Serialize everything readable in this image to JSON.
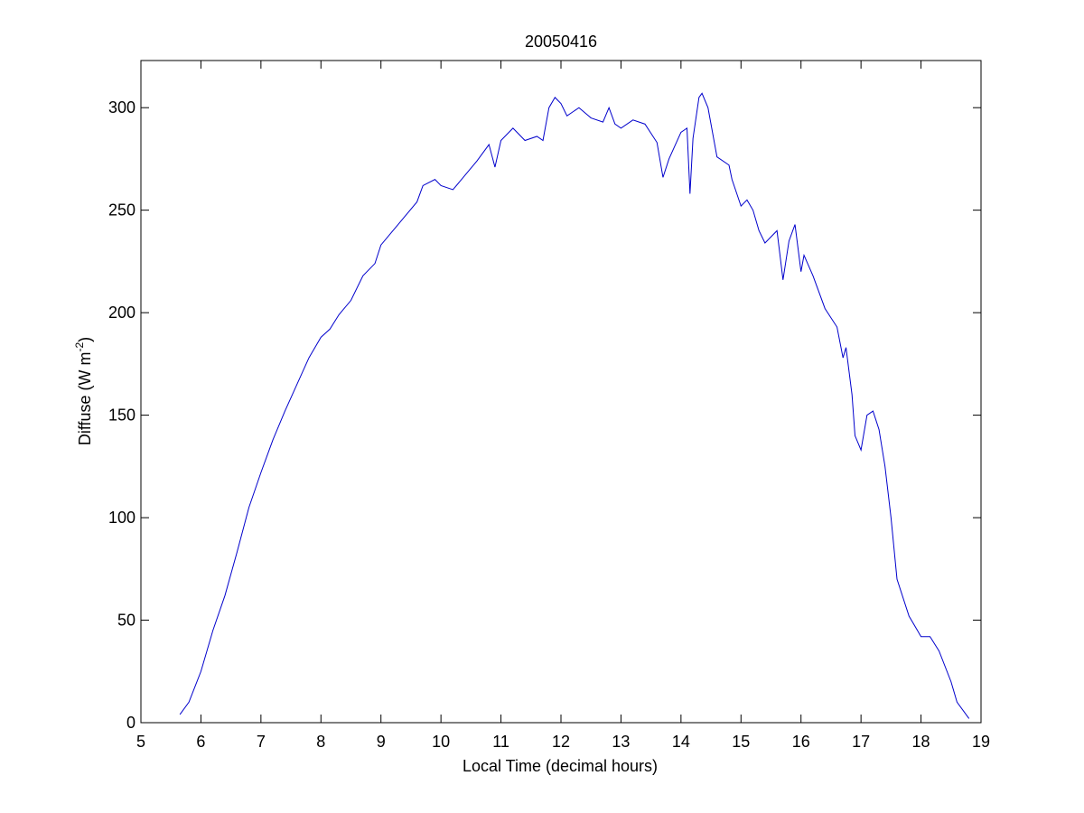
{
  "chart_data": {
    "type": "line",
    "title": "20050416",
    "xlabel": "Local Time (decimal hours)",
    "ylabel": "Diffuse (W m",
    "ylabel_sup": "-2",
    "ylabel_end": ")",
    "color": "#0000cc",
    "x": [
      5.65,
      5.8,
      6.0,
      6.2,
      6.4,
      6.6,
      6.8,
      7.0,
      7.2,
      7.4,
      7.6,
      7.8,
      8.0,
      8.15,
      8.3,
      8.5,
      8.7,
      8.9,
      9.0,
      9.2,
      9.4,
      9.6,
      9.7,
      9.9,
      10.0,
      10.2,
      10.4,
      10.6,
      10.8,
      10.9,
      11.0,
      11.2,
      11.4,
      11.6,
      11.7,
      11.8,
      11.9,
      12.0,
      12.1,
      12.3,
      12.5,
      12.7,
      12.8,
      12.9,
      13.0,
      13.2,
      13.4,
      13.6,
      13.7,
      13.8,
      14.0,
      14.1,
      14.15,
      14.2,
      14.3,
      14.35,
      14.45,
      14.6,
      14.8,
      14.85,
      15.0,
      15.1,
      15.2,
      15.3,
      15.4,
      15.6,
      15.7,
      15.8,
      15.9,
      16.0,
      16.05,
      16.2,
      16.4,
      16.6,
      16.7,
      16.75,
      16.85,
      16.9,
      17.0,
      17.1,
      17.2,
      17.3,
      17.4,
      17.5,
      17.6,
      17.8,
      18.0,
      18.15,
      18.3,
      18.5,
      18.6,
      18.8
    ],
    "values": [
      4,
      10,
      25,
      45,
      62,
      83,
      105,
      122,
      138,
      152,
      165,
      178,
      188,
      192,
      199,
      206,
      218,
      224,
      233,
      240,
      247,
      254,
      262,
      265,
      262,
      260,
      267,
      274,
      282,
      271,
      284,
      290,
      284,
      286,
      284,
      300,
      305,
      302,
      296,
      300,
      295,
      293,
      300,
      292,
      290,
      294,
      292,
      283,
      266,
      275,
      288,
      290,
      258,
      285,
      305,
      307,
      300,
      276,
      272,
      265,
      252,
      255,
      250,
      240,
      234,
      240,
      216,
      235,
      243,
      220,
      228,
      218,
      202,
      193,
      178,
      183,
      160,
      140,
      133,
      150,
      152,
      143,
      125,
      100,
      70,
      52,
      42,
      42,
      35,
      20,
      10,
      2
    ],
    "xlim": [
      5,
      19
    ],
    "xticks": [
      5,
      6,
      7,
      8,
      9,
      10,
      11,
      12,
      13,
      14,
      15,
      16,
      17,
      18,
      19
    ],
    "ylim": [
      0,
      323
    ],
    "yticks": [
      0,
      50,
      100,
      150,
      200,
      250,
      300
    ]
  }
}
